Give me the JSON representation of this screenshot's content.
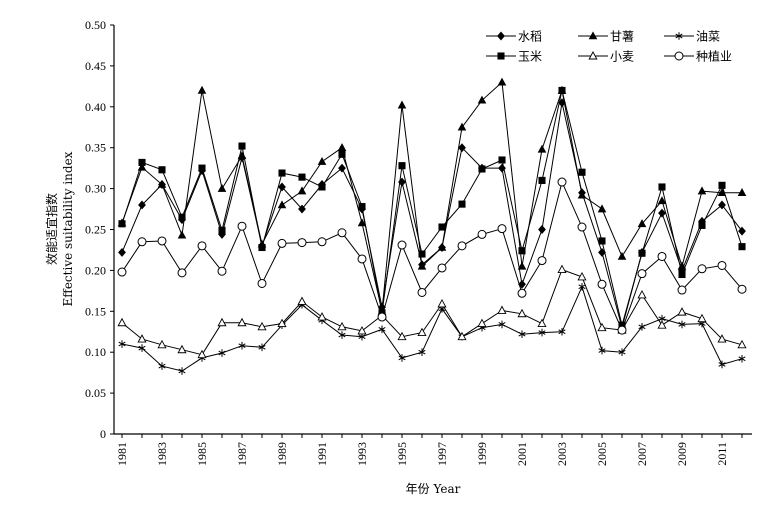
{
  "chart_data": {
    "type": "line",
    "xlabel": "年份 Year",
    "ylabel_line1": "效能适宜指数",
    "ylabel_line2": "Effective suitability index",
    "x": [
      1981,
      1982,
      1983,
      1984,
      1985,
      1986,
      1987,
      1988,
      1989,
      1990,
      1991,
      1992,
      1993,
      1994,
      1995,
      1996,
      1997,
      1998,
      1999,
      2000,
      2001,
      2002,
      2003,
      2004,
      2005,
      2006,
      2007,
      2008,
      2009,
      2010,
      2011,
      2012
    ],
    "x_tick_labels": [
      "1981",
      "1983",
      "1985",
      "1987",
      "1989",
      "1991",
      "1993",
      "1995",
      "1997",
      "1999",
      "2001",
      "2003",
      "2005",
      "2007",
      "2009",
      "2011"
    ],
    "ylim": [
      0,
      0.5
    ],
    "y_tick_labels": [
      "0",
      "0.05",
      "0.10",
      "0.15",
      "0.20",
      "0.25",
      "0.30",
      "0.35",
      "0.40",
      "0.45",
      "0.50"
    ],
    "legend_position": "top-right",
    "series": [
      {
        "name": "水稻",
        "marker": "diamond",
        "values": [
          0.222,
          0.28,
          0.305,
          0.262,
          0.322,
          0.244,
          0.338,
          0.23,
          0.302,
          0.275,
          0.305,
          0.325,
          0.275,
          0.155,
          0.308,
          0.207,
          0.228,
          0.35,
          0.325,
          0.325,
          0.183,
          0.25,
          0.405,
          0.295,
          0.222,
          0.13,
          0.222,
          0.27,
          0.2,
          0.26,
          0.28,
          0.248
        ]
      },
      {
        "name": "甘薯",
        "marker": "filled-triangle",
        "values": [
          0.258,
          0.326,
          0.305,
          0.243,
          0.42,
          0.3,
          0.34,
          0.232,
          0.28,
          0.297,
          0.333,
          0.35,
          0.258,
          0.15,
          0.402,
          0.205,
          0.228,
          0.375,
          0.408,
          0.43,
          0.205,
          0.348,
          0.42,
          0.292,
          0.275,
          0.217,
          0.257,
          0.285,
          0.205,
          0.297,
          0.295,
          0.295
        ]
      },
      {
        "name": "油菜",
        "marker": "asterisk",
        "values": [
          0.11,
          0.105,
          0.083,
          0.077,
          0.093,
          0.099,
          0.108,
          0.106,
          0.133,
          0.158,
          0.139,
          0.121,
          0.119,
          0.128,
          0.093,
          0.1,
          0.153,
          0.119,
          0.13,
          0.134,
          0.122,
          0.124,
          0.125,
          0.18,
          0.102,
          0.1,
          0.131,
          0.141,
          0.134,
          0.135,
          0.085,
          0.092
        ]
      },
      {
        "name": "玉米",
        "marker": "square",
        "values": [
          0.257,
          0.332,
          0.323,
          0.265,
          0.325,
          0.249,
          0.352,
          0.228,
          0.319,
          0.314,
          0.302,
          0.342,
          0.278,
          0.148,
          0.328,
          0.22,
          0.253,
          0.281,
          0.324,
          0.335,
          0.224,
          0.31,
          0.42,
          0.32,
          0.236,
          0.133,
          0.221,
          0.302,
          0.195,
          0.255,
          0.304,
          0.229
        ]
      },
      {
        "name": "小麦",
        "marker": "open-triangle",
        "values": [
          0.136,
          0.116,
          0.109,
          0.103,
          0.097,
          0.136,
          0.136,
          0.131,
          0.135,
          0.162,
          0.143,
          0.131,
          0.126,
          0.145,
          0.119,
          0.124,
          0.159,
          0.119,
          0.135,
          0.151,
          0.147,
          0.135,
          0.201,
          0.192,
          0.13,
          0.127,
          0.17,
          0.133,
          0.149,
          0.141,
          0.116,
          0.109
        ]
      },
      {
        "name": "种植业",
        "marker": "circle",
        "values": [
          0.198,
          0.235,
          0.236,
          0.197,
          0.23,
          0.199,
          0.254,
          0.184,
          0.233,
          0.234,
          0.235,
          0.246,
          0.214,
          0.143,
          0.231,
          0.173,
          0.203,
          0.23,
          0.244,
          0.251,
          0.172,
          0.212,
          0.308,
          0.253,
          0.183,
          0.127,
          0.196,
          0.217,
          0.176,
          0.202,
          0.206,
          0.177
        ]
      }
    ]
  }
}
